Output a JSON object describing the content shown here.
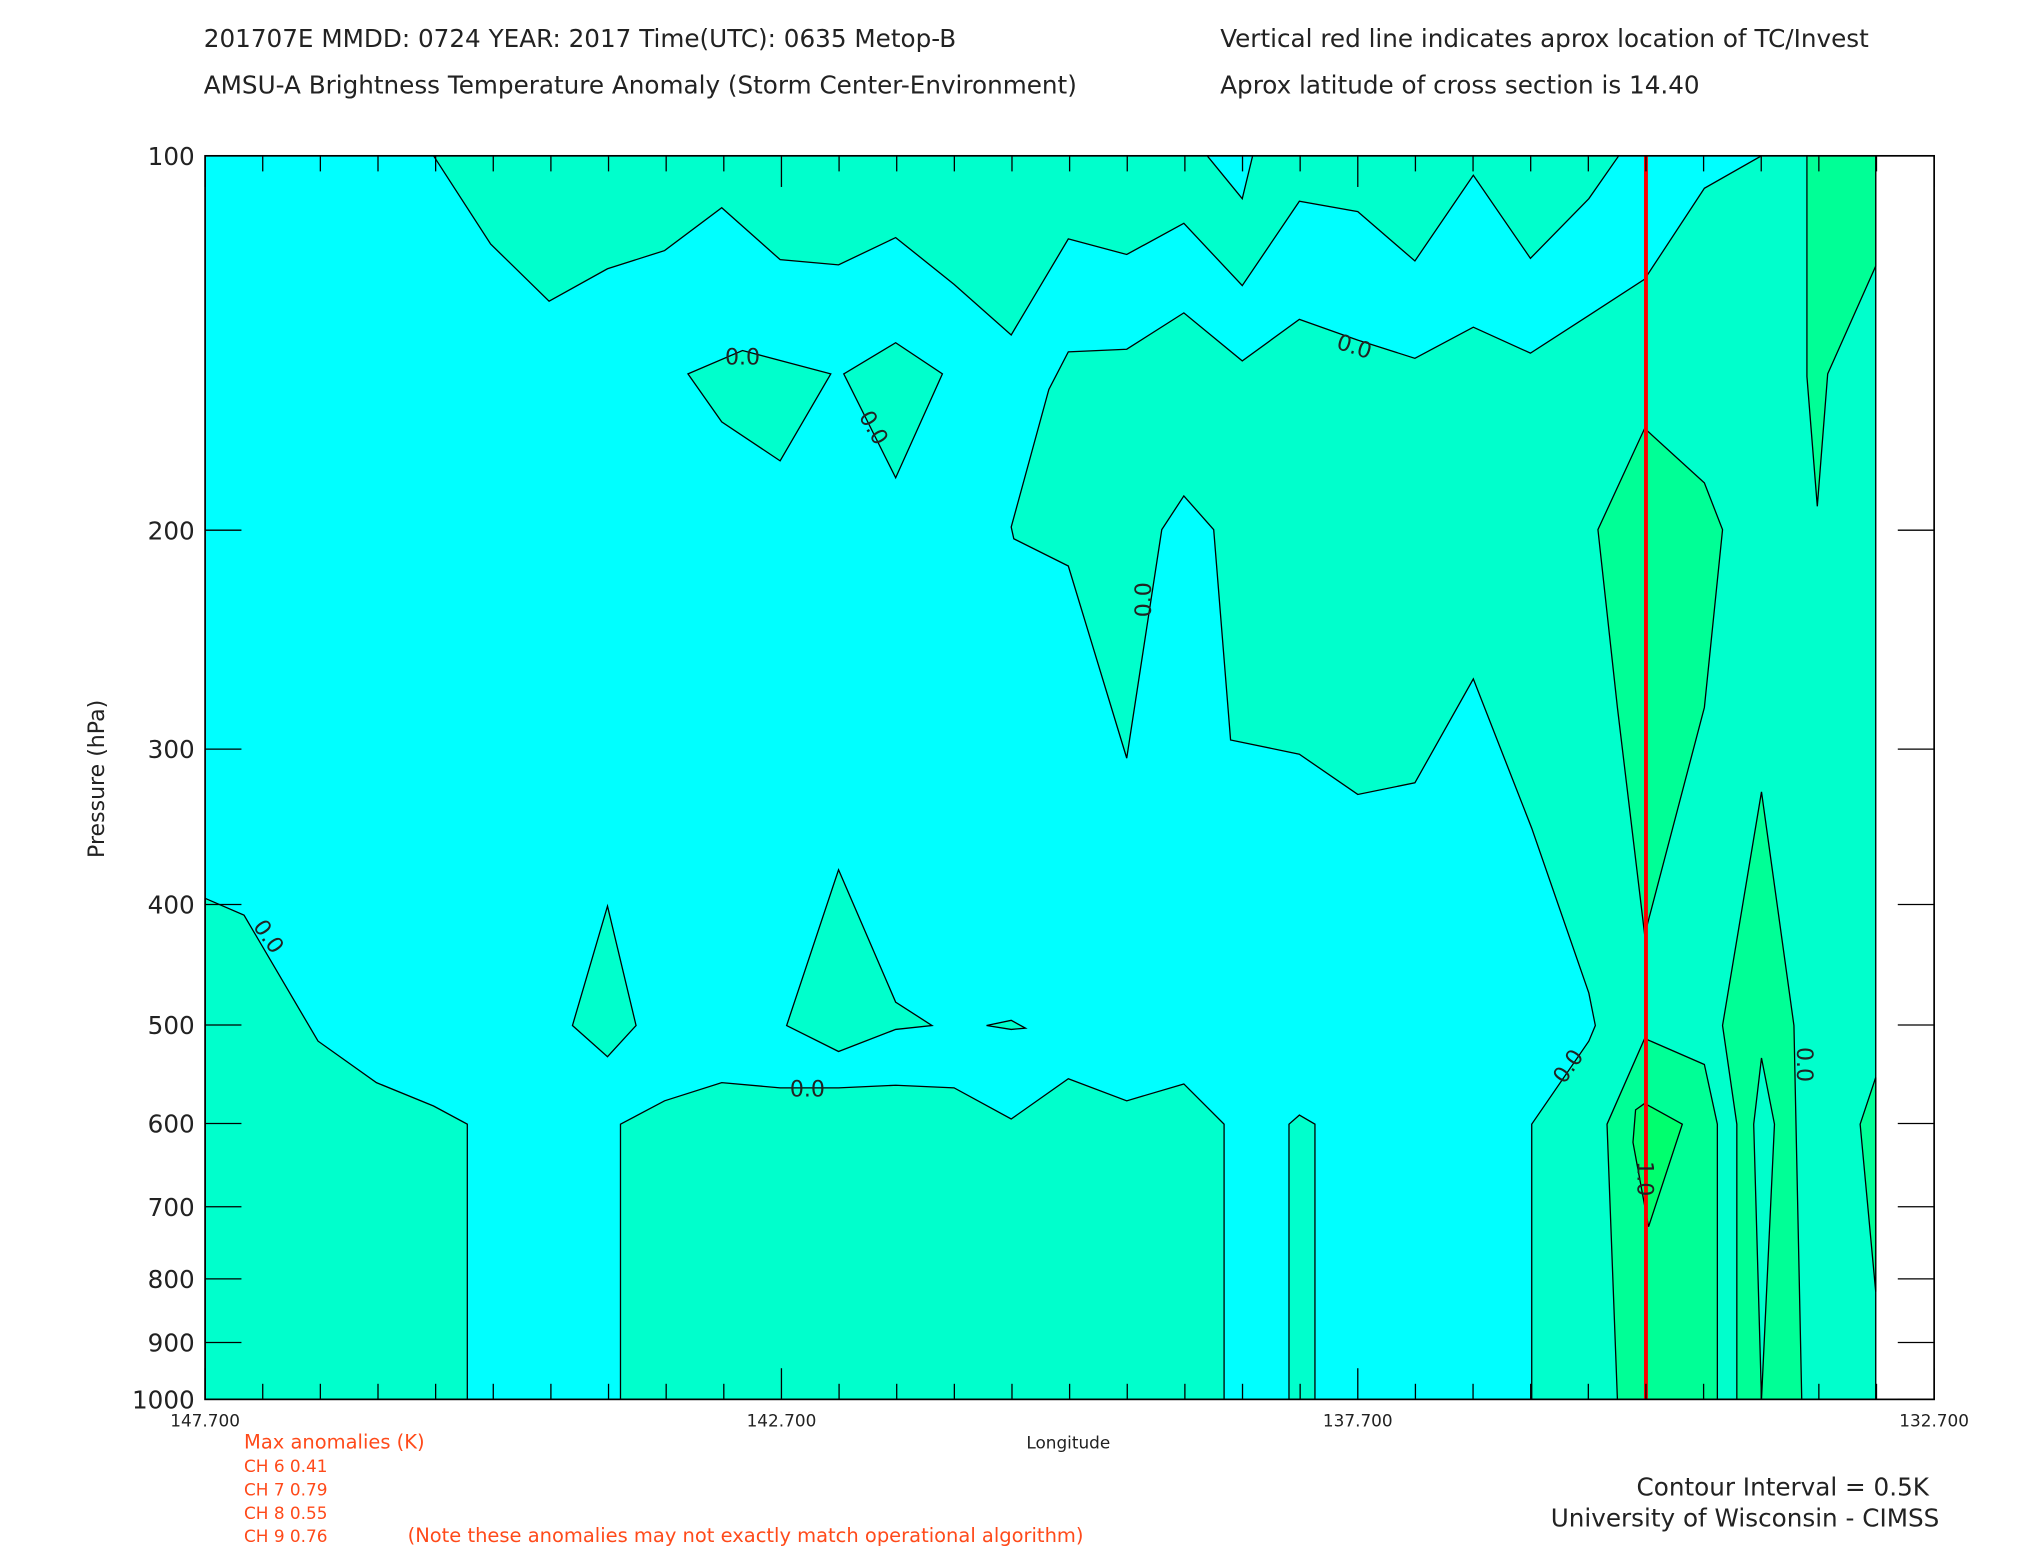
{
  "header": {
    "line1_left": "201707E  MMDD: 0724 YEAR: 2017 Time(UTC): 0635 Metop-B",
    "line1_right": "Vertical red line indicates aprox location of TC/Invest",
    "line2_left": "AMSU-A Brightness Temperature Anomaly (Storm Center-Environment)",
    "line2_right": "Aprox latitude of cross section is 14.40"
  },
  "footer": {
    "max_title": "Max anomalies (K)",
    "channels": [
      "CH 6  0.41",
      "CH 7  0.79",
      "CH 8  0.55",
      "CH 9  0.76"
    ],
    "note": "(Note these anomalies may not exactly match operational algorithm)",
    "contour_interval": "Contour Interval = 0.5K",
    "credit": "University of Wisconsin - CIMSS"
  },
  "chart_data": {
    "type": "heatmap",
    "subtype": "filled contour cross-section",
    "xlabel": "Longitude",
    "ylabel": "Pressure (hPa)",
    "xlim": [
      147.7,
      132.7
    ],
    "ylim": [
      1000,
      100
    ],
    "yscale": "log",
    "x_ticks": [
      "147.700",
      "142.700",
      "137.700",
      "132.700"
    ],
    "y_ticks": [
      "100",
      "200",
      "300",
      "400",
      "500",
      "600",
      "700",
      "800",
      "900",
      "1000"
    ],
    "contour_interval_K": 0.5,
    "levels": [
      {
        "range": "< 0.0",
        "color": "#00ffff"
      },
      {
        "range": "0.0 - 0.5",
        "color": "#00ffcc"
      },
      {
        "range": "0.5 - 1.0",
        "color": "#00ff96"
      },
      {
        "range": ">= 1.0",
        "color": "#00ff6e"
      }
    ],
    "contour_labels": [
      "0.0",
      "0.0",
      "0.0",
      "0.0",
      "0.0",
      "0.0",
      "0.0",
      "0.0",
      "1.0"
    ],
    "storm_longitude": 135.2,
    "storm_line_color": "#ff0000",
    "data_extent_east": 133.2
  }
}
